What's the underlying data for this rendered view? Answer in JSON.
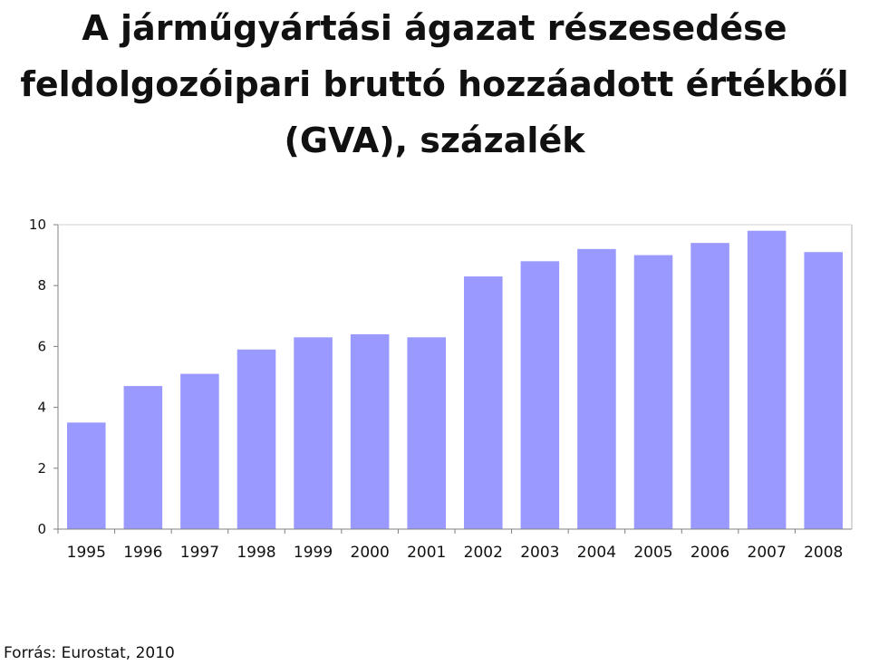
{
  "chart_data": {
    "type": "bar",
    "title_lines": [
      "A járműgyártási ágazat részesedése",
      "feldolgozóipari bruttó hozzáadott értékből",
      "(GVA), százalék"
    ],
    "categories": [
      "1995",
      "1996",
      "1997",
      "1998",
      "1999",
      "2000",
      "2001",
      "2002",
      "2003",
      "2004",
      "2005",
      "2006",
      "2007",
      "2008"
    ],
    "values": [
      3.5,
      4.7,
      5.1,
      5.9,
      6.3,
      6.4,
      6.3,
      8.3,
      8.8,
      9.2,
      9.0,
      9.4,
      9.8,
      9.1
    ],
    "ylim": [
      0,
      10
    ],
    "yticks": [
      0,
      2,
      4,
      6,
      8,
      10
    ],
    "grid": false,
    "bar_color": "#9999ff",
    "axis_color": "#808080"
  },
  "footer": {
    "source": "Forrás: Eurostat, 2010"
  }
}
